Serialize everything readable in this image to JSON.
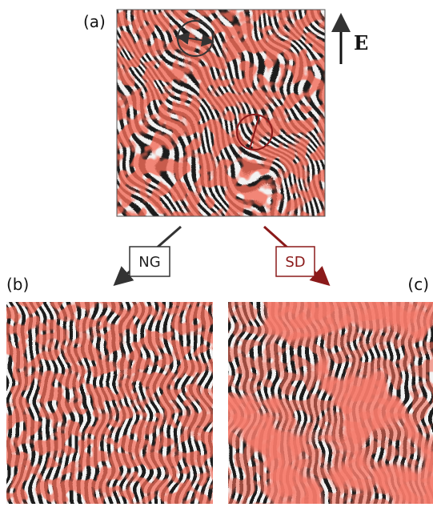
{
  "panels": {
    "a": {
      "label": "(a)"
    },
    "b": {
      "label": "(b)"
    },
    "c": {
      "label": "(c)"
    }
  },
  "field": {
    "label": "E"
  },
  "arrows": {
    "ng": {
      "label": "NG"
    },
    "sd": {
      "label": "SD"
    }
  }
}
